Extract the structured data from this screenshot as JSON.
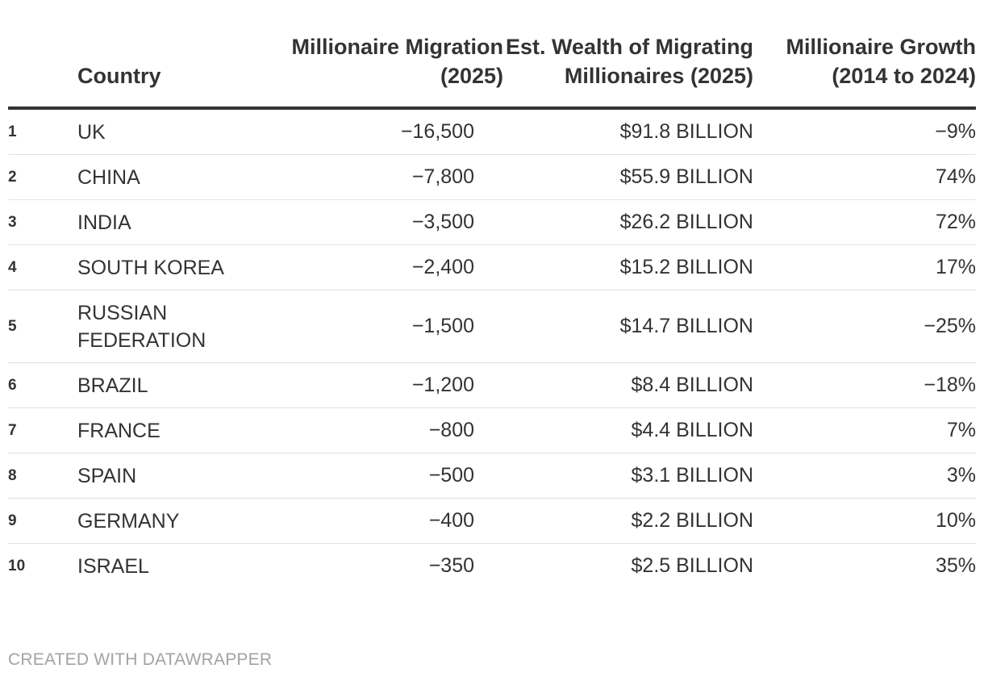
{
  "chart_data": {
    "type": "table",
    "columns": [
      "",
      "Country",
      "Millionaire Migration (2025)",
      "Est. Wealth of Migrating Millionaires (2025)",
      "Millionaire Growth (2014 to 2024)"
    ],
    "rows": [
      {
        "rank": "1",
        "country": "UK",
        "migration": "−16,500",
        "wealth": "$91.8 BILLION",
        "growth": "−9%"
      },
      {
        "rank": "2",
        "country": "CHINA",
        "migration": "−7,800",
        "wealth": "$55.9 BILLION",
        "growth": "74%"
      },
      {
        "rank": "3",
        "country": "INDIA",
        "migration": "−3,500",
        "wealth": "$26.2 BILLION",
        "growth": "72%"
      },
      {
        "rank": "4",
        "country": "SOUTH KOREA",
        "migration": "−2,400",
        "wealth": "$15.2 BILLION",
        "growth": "17%"
      },
      {
        "rank": "5",
        "country": "RUSSIAN FEDERATION",
        "migration": "−1,500",
        "wealth": "$14.7 BILLION",
        "growth": "−25%"
      },
      {
        "rank": "6",
        "country": "BRAZIL",
        "migration": "−1,200",
        "wealth": "$8.4 BILLION",
        "growth": "−18%"
      },
      {
        "rank": "7",
        "country": "FRANCE",
        "migration": "−800",
        "wealth": "$4.4 BILLION",
        "growth": "7%"
      },
      {
        "rank": "8",
        "country": "SPAIN",
        "migration": "−500",
        "wealth": "$3.1 BILLION",
        "growth": "3%"
      },
      {
        "rank": "9",
        "country": "GERMANY",
        "migration": "−400",
        "wealth": "$2.2 BILLION",
        "growth": "10%"
      },
      {
        "rank": "10",
        "country": "ISRAEL",
        "migration": "−350",
        "wealth": "$2.5 BILLION",
        "growth": "35%"
      }
    ]
  },
  "footer": {
    "credit": "CREATED WITH DATAWRAPPER"
  },
  "colors": {
    "text": "#333333",
    "header_rule": "#333333",
    "row_rule": "#e2e2e2",
    "footer_text": "#a3a3a3"
  }
}
